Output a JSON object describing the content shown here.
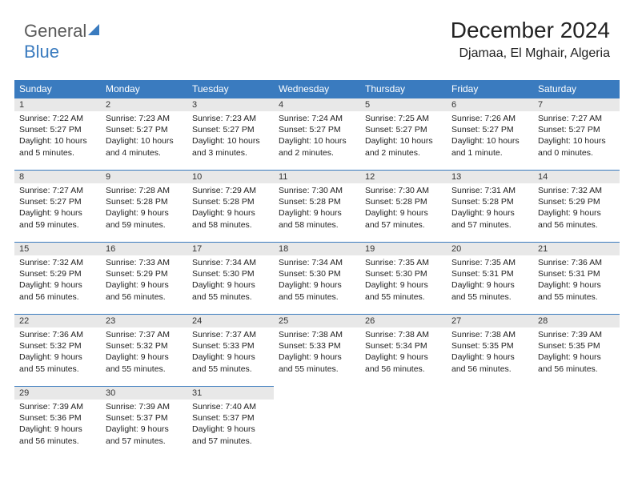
{
  "logo": {
    "text1": "General",
    "text2": "Blue"
  },
  "header": {
    "month_year": "December 2024",
    "location": "Djamaa, El Mghair, Algeria"
  },
  "colors": {
    "header_bg": "#3a7bbf",
    "header_text": "#ffffff",
    "daynum_bg": "#e8e8e8",
    "daynum_border": "#3a7bbf"
  },
  "weekdays": [
    "Sunday",
    "Monday",
    "Tuesday",
    "Wednesday",
    "Thursday",
    "Friday",
    "Saturday"
  ],
  "weeks": [
    [
      {
        "n": "1",
        "sr": "Sunrise: 7:22 AM",
        "ss": "Sunset: 5:27 PM",
        "d1": "Daylight: 10 hours",
        "d2": "and 5 minutes."
      },
      {
        "n": "2",
        "sr": "Sunrise: 7:23 AM",
        "ss": "Sunset: 5:27 PM",
        "d1": "Daylight: 10 hours",
        "d2": "and 4 minutes."
      },
      {
        "n": "3",
        "sr": "Sunrise: 7:23 AM",
        "ss": "Sunset: 5:27 PM",
        "d1": "Daylight: 10 hours",
        "d2": "and 3 minutes."
      },
      {
        "n": "4",
        "sr": "Sunrise: 7:24 AM",
        "ss": "Sunset: 5:27 PM",
        "d1": "Daylight: 10 hours",
        "d2": "and 2 minutes."
      },
      {
        "n": "5",
        "sr": "Sunrise: 7:25 AM",
        "ss": "Sunset: 5:27 PM",
        "d1": "Daylight: 10 hours",
        "d2": "and 2 minutes."
      },
      {
        "n": "6",
        "sr": "Sunrise: 7:26 AM",
        "ss": "Sunset: 5:27 PM",
        "d1": "Daylight: 10 hours",
        "d2": "and 1 minute."
      },
      {
        "n": "7",
        "sr": "Sunrise: 7:27 AM",
        "ss": "Sunset: 5:27 PM",
        "d1": "Daylight: 10 hours",
        "d2": "and 0 minutes."
      }
    ],
    [
      {
        "n": "8",
        "sr": "Sunrise: 7:27 AM",
        "ss": "Sunset: 5:27 PM",
        "d1": "Daylight: 9 hours",
        "d2": "and 59 minutes."
      },
      {
        "n": "9",
        "sr": "Sunrise: 7:28 AM",
        "ss": "Sunset: 5:28 PM",
        "d1": "Daylight: 9 hours",
        "d2": "and 59 minutes."
      },
      {
        "n": "10",
        "sr": "Sunrise: 7:29 AM",
        "ss": "Sunset: 5:28 PM",
        "d1": "Daylight: 9 hours",
        "d2": "and 58 minutes."
      },
      {
        "n": "11",
        "sr": "Sunrise: 7:30 AM",
        "ss": "Sunset: 5:28 PM",
        "d1": "Daylight: 9 hours",
        "d2": "and 58 minutes."
      },
      {
        "n": "12",
        "sr": "Sunrise: 7:30 AM",
        "ss": "Sunset: 5:28 PM",
        "d1": "Daylight: 9 hours",
        "d2": "and 57 minutes."
      },
      {
        "n": "13",
        "sr": "Sunrise: 7:31 AM",
        "ss": "Sunset: 5:28 PM",
        "d1": "Daylight: 9 hours",
        "d2": "and 57 minutes."
      },
      {
        "n": "14",
        "sr": "Sunrise: 7:32 AM",
        "ss": "Sunset: 5:29 PM",
        "d1": "Daylight: 9 hours",
        "d2": "and 56 minutes."
      }
    ],
    [
      {
        "n": "15",
        "sr": "Sunrise: 7:32 AM",
        "ss": "Sunset: 5:29 PM",
        "d1": "Daylight: 9 hours",
        "d2": "and 56 minutes."
      },
      {
        "n": "16",
        "sr": "Sunrise: 7:33 AM",
        "ss": "Sunset: 5:29 PM",
        "d1": "Daylight: 9 hours",
        "d2": "and 56 minutes."
      },
      {
        "n": "17",
        "sr": "Sunrise: 7:34 AM",
        "ss": "Sunset: 5:30 PM",
        "d1": "Daylight: 9 hours",
        "d2": "and 55 minutes."
      },
      {
        "n": "18",
        "sr": "Sunrise: 7:34 AM",
        "ss": "Sunset: 5:30 PM",
        "d1": "Daylight: 9 hours",
        "d2": "and 55 minutes."
      },
      {
        "n": "19",
        "sr": "Sunrise: 7:35 AM",
        "ss": "Sunset: 5:30 PM",
        "d1": "Daylight: 9 hours",
        "d2": "and 55 minutes."
      },
      {
        "n": "20",
        "sr": "Sunrise: 7:35 AM",
        "ss": "Sunset: 5:31 PM",
        "d1": "Daylight: 9 hours",
        "d2": "and 55 minutes."
      },
      {
        "n": "21",
        "sr": "Sunrise: 7:36 AM",
        "ss": "Sunset: 5:31 PM",
        "d1": "Daylight: 9 hours",
        "d2": "and 55 minutes."
      }
    ],
    [
      {
        "n": "22",
        "sr": "Sunrise: 7:36 AM",
        "ss": "Sunset: 5:32 PM",
        "d1": "Daylight: 9 hours",
        "d2": "and 55 minutes."
      },
      {
        "n": "23",
        "sr": "Sunrise: 7:37 AM",
        "ss": "Sunset: 5:32 PM",
        "d1": "Daylight: 9 hours",
        "d2": "and 55 minutes."
      },
      {
        "n": "24",
        "sr": "Sunrise: 7:37 AM",
        "ss": "Sunset: 5:33 PM",
        "d1": "Daylight: 9 hours",
        "d2": "and 55 minutes."
      },
      {
        "n": "25",
        "sr": "Sunrise: 7:38 AM",
        "ss": "Sunset: 5:33 PM",
        "d1": "Daylight: 9 hours",
        "d2": "and 55 minutes."
      },
      {
        "n": "26",
        "sr": "Sunrise: 7:38 AM",
        "ss": "Sunset: 5:34 PM",
        "d1": "Daylight: 9 hours",
        "d2": "and 56 minutes."
      },
      {
        "n": "27",
        "sr": "Sunrise: 7:38 AM",
        "ss": "Sunset: 5:35 PM",
        "d1": "Daylight: 9 hours",
        "d2": "and 56 minutes."
      },
      {
        "n": "28",
        "sr": "Sunrise: 7:39 AM",
        "ss": "Sunset: 5:35 PM",
        "d1": "Daylight: 9 hours",
        "d2": "and 56 minutes."
      }
    ],
    [
      {
        "n": "29",
        "sr": "Sunrise: 7:39 AM",
        "ss": "Sunset: 5:36 PM",
        "d1": "Daylight: 9 hours",
        "d2": "and 56 minutes."
      },
      {
        "n": "30",
        "sr": "Sunrise: 7:39 AM",
        "ss": "Sunset: 5:37 PM",
        "d1": "Daylight: 9 hours",
        "d2": "and 57 minutes."
      },
      {
        "n": "31",
        "sr": "Sunrise: 7:40 AM",
        "ss": "Sunset: 5:37 PM",
        "d1": "Daylight: 9 hours",
        "d2": "and 57 minutes."
      },
      {
        "empty": true
      },
      {
        "empty": true
      },
      {
        "empty": true
      },
      {
        "empty": true
      }
    ]
  ]
}
